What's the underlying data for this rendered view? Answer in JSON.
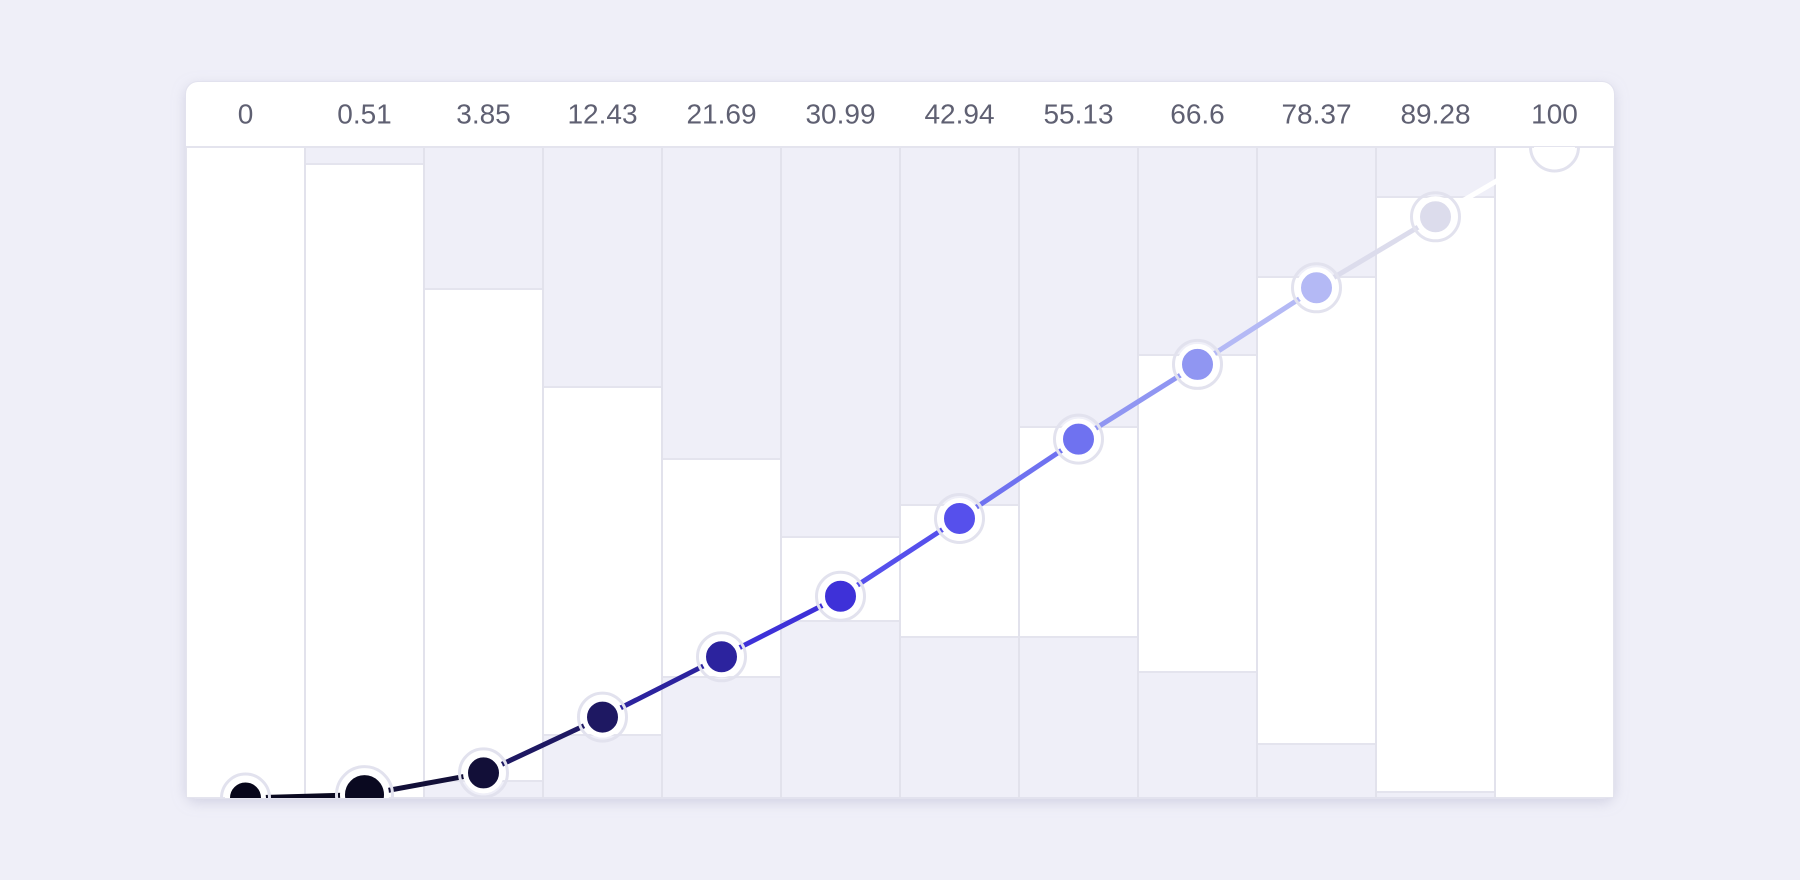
{
  "stops": [
    {
      "value": 0,
      "color": "#07061a"
    },
    {
      "value": 0.51,
      "color": "#0a0920"
    },
    {
      "value": 3.85,
      "color": "#120f38"
    },
    {
      "value": 12.43,
      "color": "#1e1862"
    },
    {
      "value": 21.69,
      "color": "#2c239e"
    },
    {
      "value": 30.99,
      "color": "#3e31d8"
    },
    {
      "value": 42.94,
      "color": "#5650ec"
    },
    {
      "value": 55.13,
      "color": "#6f72f0"
    },
    {
      "value": 66.6,
      "color": "#9096f2"
    },
    {
      "value": 78.37,
      "color": "#b4b9f5"
    },
    {
      "value": 89.28,
      "color": "#dcdcec"
    },
    {
      "value": 100,
      "color": "#ffffff"
    }
  ]
}
